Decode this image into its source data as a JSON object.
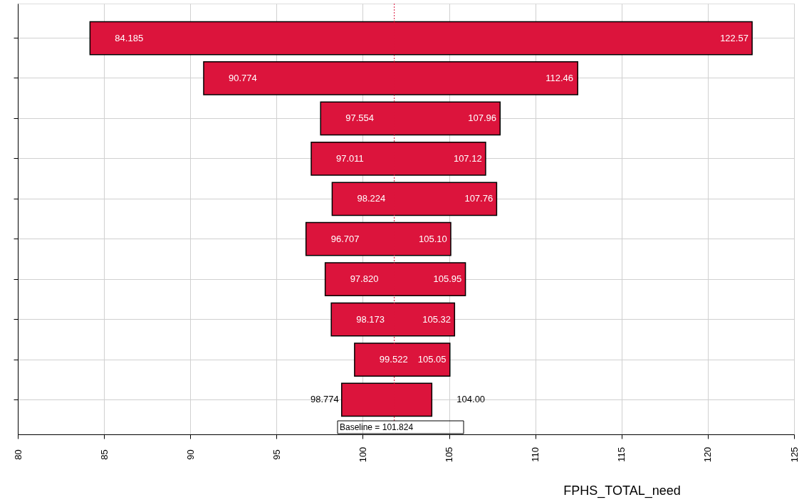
{
  "chart_data": {
    "type": "bar",
    "orientation": "horizontal",
    "categories": [
      null,
      null,
      null,
      null,
      null,
      null,
      null,
      null,
      null,
      null
    ],
    "base": [
      84.185,
      90.774,
      97.554,
      97.011,
      98.224,
      96.707,
      97.82,
      98.173,
      99.522,
      98.774
    ],
    "values": [
      38.385,
      21.686,
      10.406,
      10.109,
      9.536,
      8.393,
      8.13,
      7.147,
      5.528,
      5.226
    ],
    "color": "#dc143c",
    "annotations": [
      {
        "text": "84.185",
        "x": 84.185
      },
      {
        "text": "122.57",
        "x": 122.57
      },
      {
        "text": "90.774",
        "x": 90.774
      },
      {
        "text": "112.46",
        "x": 112.46
      },
      {
        "text": "97.554",
        "x": 97.554
      },
      {
        "text": "107.96",
        "x": 107.96
      },
      {
        "text": "97.011",
        "x": 97.011
      },
      {
        "text": "107.12",
        "x": 107.12
      },
      {
        "text": "98.224",
        "x": 98.224
      },
      {
        "text": "107.76",
        "x": 107.76
      },
      {
        "text": "96.707",
        "x": 96.707
      },
      {
        "text": "105.10",
        "x": 105.1
      },
      {
        "text": "97.820",
        "x": 97.82
      },
      {
        "text": "105.95",
        "x": 105.95
      },
      {
        "text": "98.173",
        "x": 98.173
      },
      {
        "text": "105.32",
        "x": 105.32
      },
      {
        "text": "99.522",
        "x": 99.522
      },
      {
        "text": "105.05",
        "x": 105.05
      },
      {
        "text": "98.774",
        "x": 98.774
      },
      {
        "text": "104.00",
        "x": 104.0
      }
    ],
    "xlabel": "FPHS_TOTAL_need",
    "xlim": [
      80,
      125
    ],
    "xticks": [
      80,
      85,
      90,
      95,
      100,
      105,
      110,
      115,
      120,
      125
    ],
    "ref_lines": [
      {
        "axis": "x",
        "value": 101.824,
        "label": "Baseline = 101.824",
        "color": "#dc143c",
        "line_style": "dotted"
      }
    ],
    "grid": true,
    "tick_labels": "x"
  }
}
